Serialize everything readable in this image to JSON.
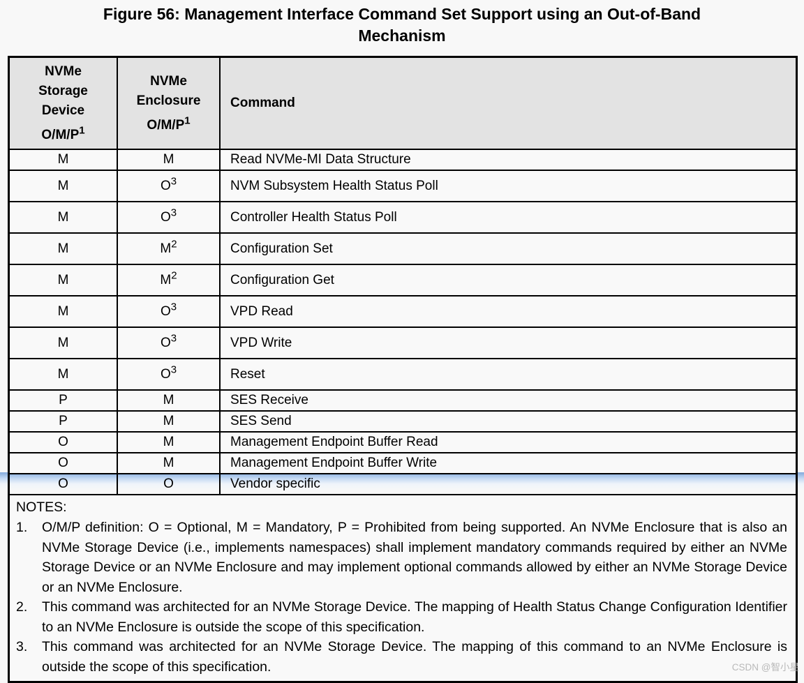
{
  "title": {
    "line1": "Figure 56: Management Interface Command Set Support using an Out-of-Band",
    "line2": "Mechanism"
  },
  "table": {
    "headers": {
      "col1": {
        "name": "NVMe Storage Device",
        "omp": "O/M/P",
        "sup": "1"
      },
      "col2": {
        "name": "NVMe Enclosure",
        "omp": "O/M/P",
        "sup": "1"
      },
      "col3": {
        "label": "Command"
      }
    },
    "rows": [
      {
        "storage": "M",
        "storage_sup": "",
        "enclosure": "M",
        "enclosure_sup": "",
        "command": "Read NVMe-MI Data Structure"
      },
      {
        "storage": "M",
        "storage_sup": "",
        "enclosure": "O",
        "enclosure_sup": "3",
        "command": "NVM Subsystem Health Status Poll"
      },
      {
        "storage": "M",
        "storage_sup": "",
        "enclosure": "O",
        "enclosure_sup": "3",
        "command": "Controller Health Status Poll"
      },
      {
        "storage": "M",
        "storage_sup": "",
        "enclosure": "M",
        "enclosure_sup": "2",
        "command": "Configuration Set"
      },
      {
        "storage": "M",
        "storage_sup": "",
        "enclosure": "M",
        "enclosure_sup": "2",
        "command": "Configuration Get"
      },
      {
        "storage": "M",
        "storage_sup": "",
        "enclosure": "O",
        "enclosure_sup": "3",
        "command": "VPD Read"
      },
      {
        "storage": "M",
        "storage_sup": "",
        "enclosure": "O",
        "enclosure_sup": "3",
        "command": "VPD Write"
      },
      {
        "storage": "M",
        "storage_sup": "",
        "enclosure": "O",
        "enclosure_sup": "3",
        "command": "Reset"
      },
      {
        "storage": "P",
        "storage_sup": "",
        "enclosure": "M",
        "enclosure_sup": "",
        "command": "SES Receive"
      },
      {
        "storage": "P",
        "storage_sup": "",
        "enclosure": "M",
        "enclosure_sup": "",
        "command": "SES Send"
      },
      {
        "storage": "O",
        "storage_sup": "",
        "enclosure": "M",
        "enclosure_sup": "",
        "command": "Management Endpoint Buffer Read"
      },
      {
        "storage": "O",
        "storage_sup": "",
        "enclosure": "M",
        "enclosure_sup": "",
        "command": "Management Endpoint Buffer Write"
      },
      {
        "storage": "O",
        "storage_sup": "",
        "enclosure": "O",
        "enclosure_sup": "",
        "command": "Vendor specific"
      }
    ],
    "notes": {
      "heading": "NOTES:",
      "items": [
        {
          "num": "1.",
          "text": "O/M/P definition: O = Optional, M = Mandatory, P = Prohibited from being supported. An NVMe Enclosure that is also an NVMe Storage Device (i.e., implements namespaces) shall implement mandatory commands required by either an NVMe Storage Device or an NVMe Enclosure and may implement optional commands allowed by either an NVMe Storage Device or an NVMe Enclosure."
        },
        {
          "num": "2.",
          "text": "This command was architected for an NVMe Storage Device. The mapping of Health Status Change Configuration Identifier to an NVMe Enclosure is outside the scope of this specification."
        },
        {
          "num": "3.",
          "text": "This command was architected for an NVMe Storage Device. The mapping of this command to an NVMe Enclosure is outside the scope of this specification."
        }
      ]
    }
  },
  "watermark": "CSDN @智小星",
  "colors": {
    "header_bg": "#e3e3e3",
    "cell_bg": "#f9f9f9",
    "border": "#000000",
    "highlight_top": "#7da5da",
    "highlight_fill": "#bad3f2"
  }
}
